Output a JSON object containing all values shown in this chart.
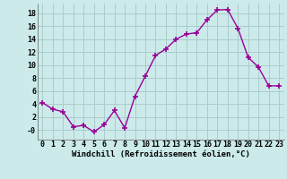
{
  "x": [
    0,
    1,
    2,
    3,
    4,
    5,
    6,
    7,
    8,
    9,
    10,
    11,
    12,
    13,
    14,
    15,
    16,
    17,
    18,
    19,
    20,
    21,
    22,
    23
  ],
  "y": [
    4.2,
    3.2,
    2.8,
    0.5,
    0.7,
    -0.3,
    0.8,
    3.0,
    0.3,
    5.2,
    8.3,
    11.5,
    12.5,
    14.0,
    14.8,
    15.0,
    17.0,
    18.5,
    18.6,
    15.7,
    11.2,
    9.7,
    6.8,
    6.8
  ],
  "line_color": "#990099",
  "marker": "+",
  "marker_size": 4,
  "marker_lw": 1.2,
  "bg_color": "#cceaea",
  "grid_color": "#aacccc",
  "xlim": [
    -0.5,
    23.5
  ],
  "ylim": [
    -1.5,
    19.5
  ],
  "yticks": [
    0,
    2,
    4,
    6,
    8,
    10,
    12,
    14,
    16,
    18
  ],
  "ytick_labels": [
    "-0",
    "2",
    "4",
    "6",
    "8",
    "10",
    "12",
    "14",
    "16",
    "18"
  ],
  "xticks": [
    0,
    1,
    2,
    3,
    4,
    5,
    6,
    7,
    8,
    9,
    10,
    11,
    12,
    13,
    14,
    15,
    16,
    17,
    18,
    19,
    20,
    21,
    22,
    23
  ],
  "xlabel": "Windchill (Refroidissement éolien,°C)",
  "xlabel_fontsize": 6.5,
  "tick_fontsize": 6.0,
  "line_width": 1.0
}
